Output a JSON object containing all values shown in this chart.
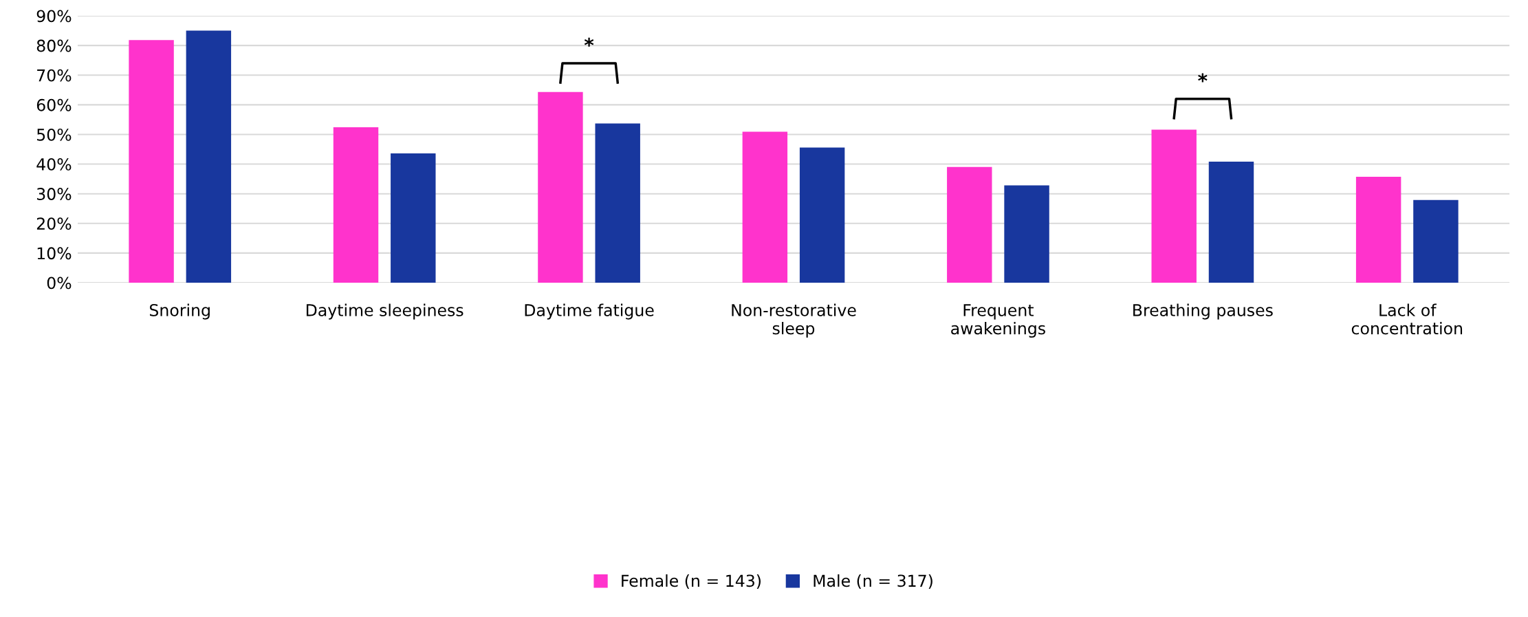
{
  "chart_data": {
    "type": "bar",
    "categories": [
      "Snoring",
      "Daytime sleepiness",
      "Daytime fatigue",
      "Non-restorative\nsleep",
      "Frequent\nawakenings",
      "Breathing pauses",
      "Lack of\nconcentration"
    ],
    "series": [
      {
        "name": "Female (n = 143)",
        "color": "#ff33cc",
        "values": [
          81.8,
          52.4,
          64.3,
          50.9,
          39.0,
          51.6,
          35.7
        ]
      },
      {
        "name": "Male (n = 317)",
        "color": "#18379e",
        "values": [
          85.0,
          43.6,
          53.7,
          45.6,
          32.8,
          40.8,
          27.9
        ]
      }
    ],
    "ylim": [
      0,
      90
    ],
    "yticks": [
      {
        "value": 0,
        "label": "0%"
      },
      {
        "value": 10,
        "label": "10%"
      },
      {
        "value": 20,
        "label": "20%"
      },
      {
        "value": 30,
        "label": "30%"
      },
      {
        "value": 40,
        "label": "40%"
      },
      {
        "value": 50,
        "label": "50%"
      },
      {
        "value": 60,
        "label": "60%"
      },
      {
        "value": 70,
        "label": "70%"
      },
      {
        "value": 80,
        "label": "80%"
      },
      {
        "value": 90,
        "label": "90%"
      }
    ],
    "annotations": [
      "*",
      "*"
    ],
    "grid": "y",
    "legend": "bottom"
  }
}
